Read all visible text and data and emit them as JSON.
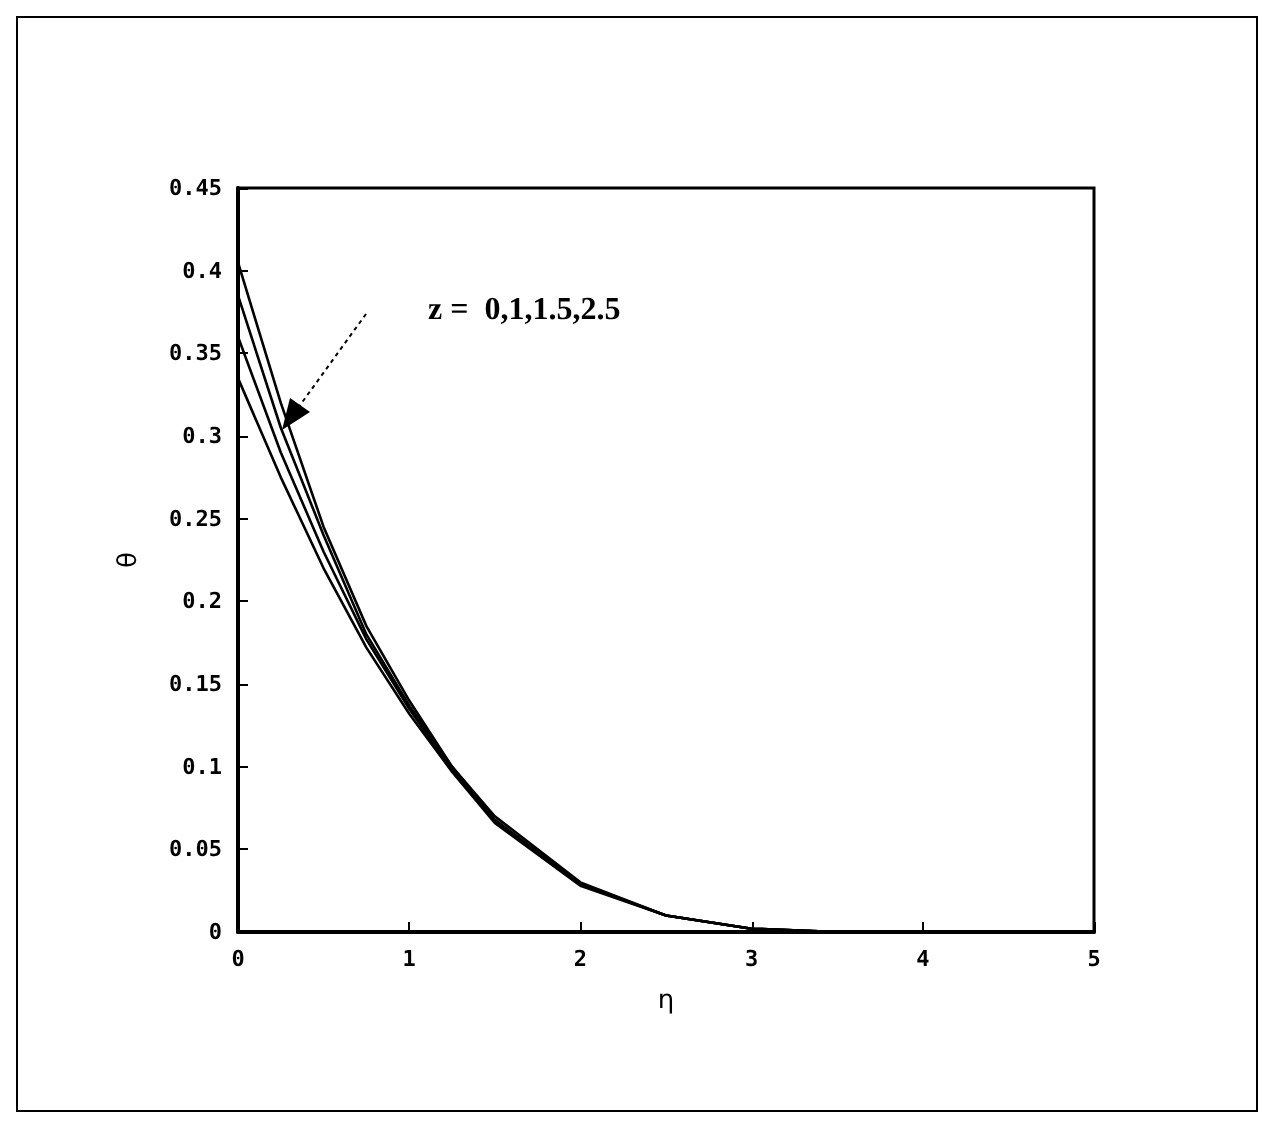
{
  "chart_data": {
    "type": "line",
    "xlabel": "η",
    "ylabel": "θ",
    "x": [
      0,
      0.25,
      0.5,
      0.75,
      1,
      1.25,
      1.5,
      2,
      2.5,
      3,
      3.5,
      4,
      5
    ],
    "series": [
      {
        "color": "#000000",
        "values": [
          0.405,
          0.32,
          0.245,
          0.185,
          0.14,
          0.1,
          0.07,
          0.03,
          0.01,
          0.002,
          0,
          0,
          0
        ]
      },
      {
        "color": "#000000",
        "values": [
          0.385,
          0.305,
          0.24,
          0.18,
          0.137,
          0.1,
          0.068,
          0.029,
          0.01,
          0.002,
          0,
          0,
          0
        ]
      },
      {
        "color": "#000000",
        "values": [
          0.36,
          0.29,
          0.23,
          0.177,
          0.135,
          0.098,
          0.067,
          0.029,
          0.01,
          0.002,
          0,
          0,
          0
        ]
      },
      {
        "color": "#000000",
        "values": [
          0.335,
          0.275,
          0.22,
          0.172,
          0.132,
          0.097,
          0.066,
          0.028,
          0.01,
          0.002,
          0,
          0,
          0
        ]
      }
    ],
    "annotations": [
      "z =  0,1,1.5,2.5"
    ],
    "xlim": [
      0,
      5
    ],
    "xticks": [
      0,
      1,
      2,
      3,
      4,
      5
    ],
    "ylim": [
      0,
      0.45
    ],
    "yticks": [
      0,
      0.05,
      0.1,
      0.15,
      0.2,
      0.25,
      0.3,
      0.35,
      0.4,
      0.45
    ],
    "grid": false,
    "marker": "none",
    "line_style": "solid"
  }
}
